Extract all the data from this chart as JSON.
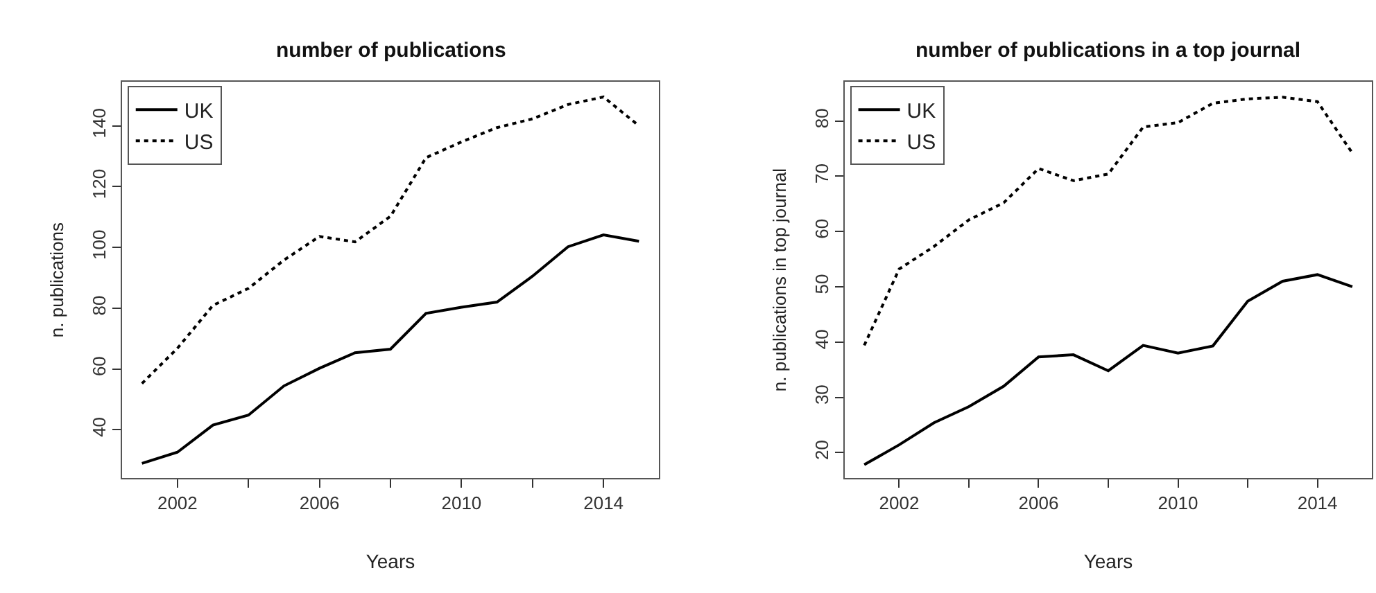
{
  "chart_data": [
    {
      "type": "line",
      "title": "number of publications",
      "xlabel": "Years",
      "ylabel": "n. publications",
      "x": [
        2001,
        2002,
        2003,
        2004,
        2005,
        2006,
        2007,
        2008,
        2009,
        2010,
        2011,
        2012,
        2013,
        2014,
        2015
      ],
      "series": [
        {
          "name": "UK",
          "color": "#000000",
          "line_style": "solid",
          "values": [
            28.9,
            32.6,
            41.5,
            44.8,
            54.4,
            60.2,
            65.3,
            66.5,
            78.3,
            80.3,
            82.0,
            90.5,
            100.2,
            104.1,
            102.0
          ]
        },
        {
          "name": "US",
          "color": "#000000",
          "line_style": "dotted",
          "values": [
            55.2,
            66.8,
            80.9,
            86.5,
            95.8,
            103.6,
            101.8,
            110.2,
            129.5,
            134.7,
            139.4,
            142.3,
            147.0,
            149.5,
            140.0
          ]
        }
      ],
      "xlim": [
        2000.44,
        2015.56
      ],
      "ylim": [
        24.1,
        154.5
      ],
      "xticks": [
        2002,
        {
          "value": 2004,
          "label": null
        },
        2006,
        {
          "value": 2008,
          "label": null
        },
        2010,
        {
          "value": 2012,
          "label": null
        },
        2014
      ],
      "yticks": [
        40,
        60,
        80,
        100,
        120,
        140
      ],
      "legend": "top left"
    },
    {
      "type": "line",
      "title": "number of publications in a top journal",
      "xlabel": "Years",
      "ylabel": "n. publications in top journal",
      "x": [
        2001,
        2002,
        2003,
        2004,
        2005,
        2006,
        2007,
        2008,
        2009,
        2010,
        2011,
        2012,
        2013,
        2014,
        2015
      ],
      "series": [
        {
          "name": "UK",
          "color": "#000000",
          "line_style": "solid",
          "values": [
            17.8,
            21.4,
            25.4,
            28.3,
            32.0,
            37.3,
            37.7,
            34.8,
            39.4,
            38.0,
            39.3,
            47.4,
            51.0,
            52.2,
            50.0
          ]
        },
        {
          "name": "US",
          "color": "#000000",
          "line_style": "dotted",
          "values": [
            39.4,
            53.2,
            57.3,
            62.1,
            65.2,
            71.4,
            69.2,
            70.4,
            78.9,
            79.7,
            83.2,
            84.0,
            84.3,
            83.5,
            74.2
          ]
        }
      ],
      "xlim": [
        2000.44,
        2015.56
      ],
      "ylim": [
        15.4,
        87.1
      ],
      "xticks": [
        2002,
        {
          "value": 2004,
          "label": null
        },
        2006,
        {
          "value": 2008,
          "label": null
        },
        2010,
        {
          "value": 2012,
          "label": null
        },
        2014
      ],
      "yticks": [
        20,
        30,
        40,
        50,
        60,
        70,
        80
      ],
      "legend": "top left"
    }
  ]
}
